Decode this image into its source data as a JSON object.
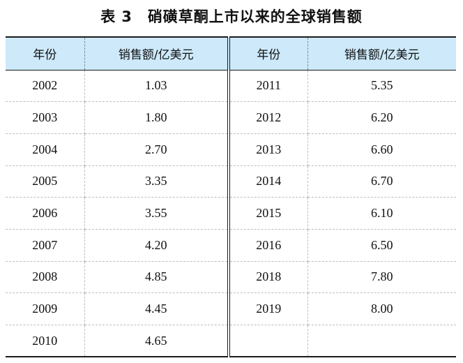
{
  "title": {
    "label": "表",
    "number": "3",
    "text": "硝磺草酮上市以来的全球销售额"
  },
  "table": {
    "headers": [
      "年份",
      "销售额/亿美元",
      "年份",
      "销售额/亿美元"
    ],
    "rows": [
      [
        "2002",
        "1.03",
        "2011",
        "5.35"
      ],
      [
        "2003",
        "1.80",
        "2012",
        "6.20"
      ],
      [
        "2004",
        "2.70",
        "2013",
        "6.60"
      ],
      [
        "2005",
        "3.35",
        "2014",
        "6.70"
      ],
      [
        "2006",
        "3.55",
        "2015",
        "6.10"
      ],
      [
        "2007",
        "4.20",
        "2016",
        "6.50"
      ],
      [
        "2008",
        "4.85",
        "2018",
        "7.80"
      ],
      [
        "2009",
        "4.45",
        "2019",
        "8.00"
      ],
      [
        "2010",
        "4.65",
        "",
        ""
      ]
    ]
  },
  "colors": {
    "header_background": "#cde9fa",
    "rule": "#1a1a1a",
    "dashed_rule": "#bdbdbd"
  }
}
